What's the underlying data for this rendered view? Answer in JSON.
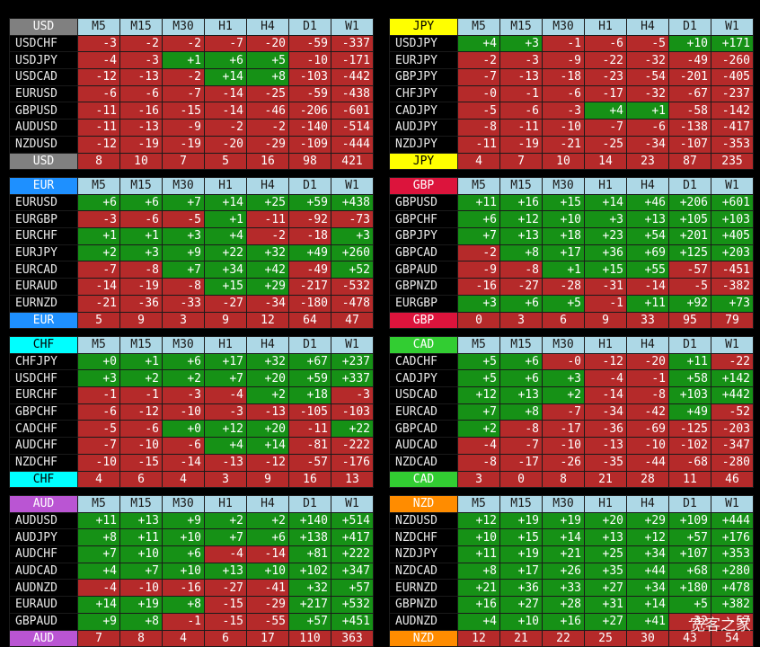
{
  "columns": [
    "M5",
    "M15",
    "M30",
    "H1",
    "H4",
    "D1",
    "W1"
  ],
  "panels": [
    {
      "currency": "USD",
      "color": "#808080",
      "fg": "#ffffff",
      "rows": [
        {
          "pair": "USDCHF",
          "v": [
            "-3",
            "-2",
            "-2",
            "-7",
            "-20",
            "-59",
            "-337"
          ]
        },
        {
          "pair": "USDJPY",
          "v": [
            "-4",
            "-3",
            "+1",
            "+6",
            "+5",
            "-10",
            "-171"
          ]
        },
        {
          "pair": "USDCAD",
          "v": [
            "-12",
            "-13",
            "-2",
            "+14",
            "+8",
            "-103",
            "-442"
          ]
        },
        {
          "pair": "EURUSD",
          "v": [
            "-6",
            "-6",
            "-7",
            "-14",
            "-25",
            "-59",
            "-438"
          ]
        },
        {
          "pair": "GBPUSD",
          "v": [
            "-11",
            "-16",
            "-15",
            "-14",
            "-46",
            "-206",
            "-601"
          ]
        },
        {
          "pair": "AUDUSD",
          "v": [
            "-11",
            "-13",
            "-9",
            "-2",
            "-2",
            "-140",
            "-514"
          ]
        },
        {
          "pair": "NZDUSD",
          "v": [
            "-12",
            "-19",
            "-19",
            "-20",
            "-29",
            "-109",
            "-444"
          ]
        }
      ],
      "totals": [
        "8",
        "10",
        "7",
        "5",
        "16",
        "98",
        "421"
      ]
    },
    {
      "currency": "JPY",
      "color": "#ffff00",
      "fg": "#000000",
      "rows": [
        {
          "pair": "USDJPY",
          "v": [
            "+4",
            "+3",
            "-1",
            "-6",
            "-5",
            "+10",
            "+171"
          ]
        },
        {
          "pair": "EURJPY",
          "v": [
            "-2",
            "-3",
            "-9",
            "-22",
            "-32",
            "-49",
            "-260"
          ]
        },
        {
          "pair": "GBPJPY",
          "v": [
            "-7",
            "-13",
            "-18",
            "-23",
            "-54",
            "-201",
            "-405"
          ]
        },
        {
          "pair": "CHFJPY",
          "v": [
            "-0",
            "-1",
            "-6",
            "-17",
            "-32",
            "-67",
            "-237"
          ]
        },
        {
          "pair": "CADJPY",
          "v": [
            "-5",
            "-6",
            "-3",
            "+4",
            "+1",
            "-58",
            "-142"
          ]
        },
        {
          "pair": "AUDJPY",
          "v": [
            "-8",
            "-11",
            "-10",
            "-7",
            "-6",
            "-138",
            "-417"
          ]
        },
        {
          "pair": "NZDJPY",
          "v": [
            "-11",
            "-19",
            "-21",
            "-25",
            "-34",
            "-107",
            "-353"
          ]
        }
      ],
      "totals": [
        "4",
        "7",
        "10",
        "14",
        "23",
        "87",
        "235"
      ]
    },
    {
      "currency": "EUR",
      "color": "#1e90ff",
      "fg": "#ffffff",
      "rows": [
        {
          "pair": "EURUSD",
          "v": [
            "+6",
            "+6",
            "+7",
            "+14",
            "+25",
            "+59",
            "+438"
          ]
        },
        {
          "pair": "EURGBP",
          "v": [
            "-3",
            "-6",
            "-5",
            "+1",
            "-11",
            "-92",
            "-73"
          ]
        },
        {
          "pair": "EURCHF",
          "v": [
            "+1",
            "+1",
            "+3",
            "+4",
            "-2",
            "-18",
            "+3"
          ]
        },
        {
          "pair": "EURJPY",
          "v": [
            "+2",
            "+3",
            "+9",
            "+22",
            "+32",
            "+49",
            "+260"
          ]
        },
        {
          "pair": "EURCAD",
          "v": [
            "-7",
            "-8",
            "+7",
            "+34",
            "+42",
            "-49",
            "+52"
          ]
        },
        {
          "pair": "EURAUD",
          "v": [
            "-14",
            "-19",
            "-8",
            "+15",
            "+29",
            "-217",
            "-532"
          ]
        },
        {
          "pair": "EURNZD",
          "v": [
            "-21",
            "-36",
            "-33",
            "-27",
            "-34",
            "-180",
            "-478"
          ]
        }
      ],
      "totals": [
        "5",
        "9",
        "3",
        "9",
        "12",
        "64",
        "47"
      ]
    },
    {
      "currency": "GBP",
      "color": "#dc143c",
      "fg": "#ffffff",
      "rows": [
        {
          "pair": "GBPUSD",
          "v": [
            "+11",
            "+16",
            "+15",
            "+14",
            "+46",
            "+206",
            "+601"
          ]
        },
        {
          "pair": "GBPCHF",
          "v": [
            "+6",
            "+12",
            "+10",
            "+3",
            "+13",
            "+105",
            "+103"
          ]
        },
        {
          "pair": "GBPJPY",
          "v": [
            "+7",
            "+13",
            "+18",
            "+23",
            "+54",
            "+201",
            "+405"
          ]
        },
        {
          "pair": "GBPCAD",
          "v": [
            "-2",
            "+8",
            "+17",
            "+36",
            "+69",
            "+125",
            "+203"
          ]
        },
        {
          "pair": "GBPAUD",
          "v": [
            "-9",
            "-8",
            "+1",
            "+15",
            "+55",
            "-57",
            "-451"
          ]
        },
        {
          "pair": "GBPNZD",
          "v": [
            "-16",
            "-27",
            "-28",
            "-31",
            "-14",
            "-5",
            "-382"
          ]
        },
        {
          "pair": "EURGBP",
          "v": [
            "+3",
            "+6",
            "+5",
            "-1",
            "+11",
            "+92",
            "+73"
          ]
        }
      ],
      "totals": [
        "0",
        "3",
        "6",
        "9",
        "33",
        "95",
        "79"
      ]
    },
    {
      "currency": "CHF",
      "color": "#00ffff",
      "fg": "#000000",
      "rows": [
        {
          "pair": "CHFJPY",
          "v": [
            "+0",
            "+1",
            "+6",
            "+17",
            "+32",
            "+67",
            "+237"
          ]
        },
        {
          "pair": "USDCHF",
          "v": [
            "+3",
            "+2",
            "+2",
            "+7",
            "+20",
            "+59",
            "+337"
          ]
        },
        {
          "pair": "EURCHF",
          "v": [
            "-1",
            "-1",
            "-3",
            "-4",
            "+2",
            "+18",
            "-3"
          ]
        },
        {
          "pair": "GBPCHF",
          "v": [
            "-6",
            "-12",
            "-10",
            "-3",
            "-13",
            "-105",
            "-103"
          ]
        },
        {
          "pair": "CADCHF",
          "v": [
            "-5",
            "-6",
            "+0",
            "+12",
            "+20",
            "-11",
            "+22"
          ]
        },
        {
          "pair": "AUDCHF",
          "v": [
            "-7",
            "-10",
            "-6",
            "+4",
            "+14",
            "-81",
            "-222"
          ]
        },
        {
          "pair": "NZDCHF",
          "v": [
            "-10",
            "-15",
            "-14",
            "-13",
            "-12",
            "-57",
            "-176"
          ]
        }
      ],
      "totals": [
        "4",
        "6",
        "4",
        "3",
        "9",
        "16",
        "13"
      ]
    },
    {
      "currency": "CAD",
      "color": "#32cd32",
      "fg": "#ffffff",
      "rows": [
        {
          "pair": "CADCHF",
          "v": [
            "+5",
            "+6",
            "-0",
            "-12",
            "-20",
            "+11",
            "-22"
          ]
        },
        {
          "pair": "CADJPY",
          "v": [
            "+5",
            "+6",
            "+3",
            "-4",
            "-1",
            "+58",
            "+142"
          ]
        },
        {
          "pair": "USDCAD",
          "v": [
            "+12",
            "+13",
            "+2",
            "-14",
            "-8",
            "+103",
            "+442"
          ]
        },
        {
          "pair": "EURCAD",
          "v": [
            "+7",
            "+8",
            "-7",
            "-34",
            "-42",
            "+49",
            "-52"
          ]
        },
        {
          "pair": "GBPCAD",
          "v": [
            "+2",
            "-8",
            "-17",
            "-36",
            "-69",
            "-125",
            "-203"
          ]
        },
        {
          "pair": "AUDCAD",
          "v": [
            "-4",
            "-7",
            "-10",
            "-13",
            "-10",
            "-102",
            "-347"
          ]
        },
        {
          "pair": "NZDCAD",
          "v": [
            "-8",
            "-17",
            "-26",
            "-35",
            "-44",
            "-68",
            "-280"
          ]
        }
      ],
      "totals": [
        "3",
        "0",
        "8",
        "21",
        "28",
        "11",
        "46"
      ]
    },
    {
      "currency": "AUD",
      "color": "#ba55d3",
      "fg": "#ffffff",
      "rows": [
        {
          "pair": "AUDUSD",
          "v": [
            "+11",
            "+13",
            "+9",
            "+2",
            "+2",
            "+140",
            "+514"
          ]
        },
        {
          "pair": "AUDJPY",
          "v": [
            "+8",
            "+11",
            "+10",
            "+7",
            "+6",
            "+138",
            "+417"
          ]
        },
        {
          "pair": "AUDCHF",
          "v": [
            "+7",
            "+10",
            "+6",
            "-4",
            "-14",
            "+81",
            "+222"
          ]
        },
        {
          "pair": "AUDCAD",
          "v": [
            "+4",
            "+7",
            "+10",
            "+13",
            "+10",
            "+102",
            "+347"
          ]
        },
        {
          "pair": "AUDNZD",
          "v": [
            "-4",
            "-10",
            "-16",
            "-27",
            "-41",
            "+32",
            "+57"
          ]
        },
        {
          "pair": "EURAUD",
          "v": [
            "+14",
            "+19",
            "+8",
            "-15",
            "-29",
            "+217",
            "+532"
          ]
        },
        {
          "pair": "GBPAUD",
          "v": [
            "+9",
            "+8",
            "-1",
            "-15",
            "-55",
            "+57",
            "+451"
          ]
        }
      ],
      "totals": [
        "7",
        "8",
        "4",
        "6",
        "17",
        "110",
        "363"
      ]
    },
    {
      "currency": "NZD",
      "color": "#ff8c00",
      "fg": "#ffffff",
      "rows": [
        {
          "pair": "NZDUSD",
          "v": [
            "+12",
            "+19",
            "+19",
            "+20",
            "+29",
            "+109",
            "+444"
          ]
        },
        {
          "pair": "NZDCHF",
          "v": [
            "+10",
            "+15",
            "+14",
            "+13",
            "+12",
            "+57",
            "+176"
          ]
        },
        {
          "pair": "NZDJPY",
          "v": [
            "+11",
            "+19",
            "+21",
            "+25",
            "+34",
            "+107",
            "+353"
          ]
        },
        {
          "pair": "NZDCAD",
          "v": [
            "+8",
            "+17",
            "+26",
            "+35",
            "+44",
            "+68",
            "+280"
          ]
        },
        {
          "pair": "EURNZD",
          "v": [
            "+21",
            "+36",
            "+33",
            "+27",
            "+34",
            "+180",
            "+478"
          ]
        },
        {
          "pair": "GBPNZD",
          "v": [
            "+16",
            "+27",
            "+28",
            "+31",
            "+14",
            "+5",
            "+382"
          ]
        },
        {
          "pair": "AUDNZD",
          "v": [
            "+4",
            "+10",
            "+16",
            "+27",
            "+41",
            "-32",
            "-57"
          ]
        }
      ],
      "totals": [
        "12",
        "21",
        "22",
        "25",
        "30",
        "43",
        "54"
      ]
    }
  ],
  "watermark": "宽客之家"
}
